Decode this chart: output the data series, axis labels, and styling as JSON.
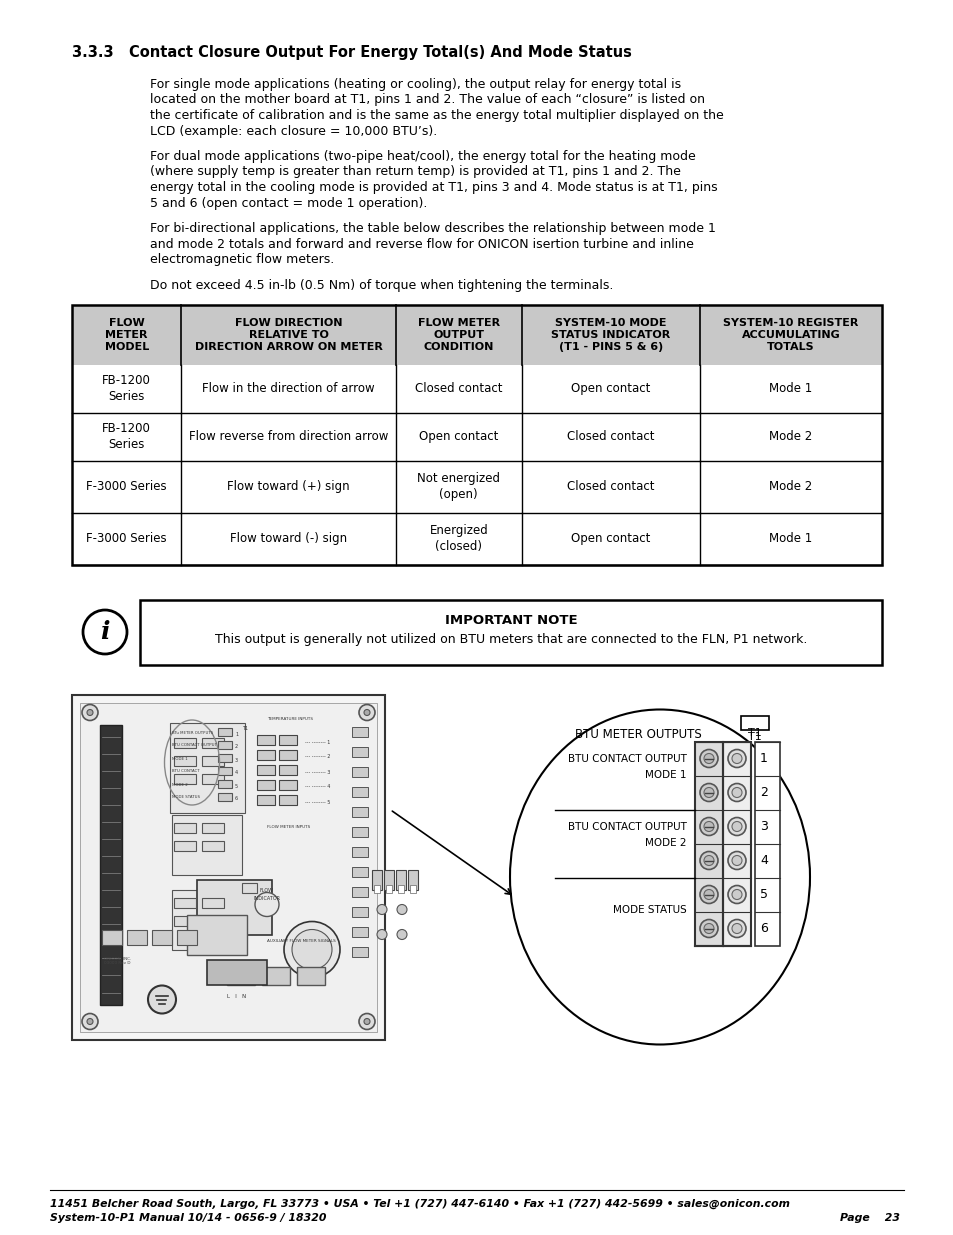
{
  "title_section": "3.3.3   Contact Closure Output For Energy Total(s) And Mode Status",
  "para1_lines": [
    "For single mode applications (heating or cooling), the output relay for energy total is",
    "located on the mother board at T1, pins 1 and 2. The value of each “closure” is listed on",
    "the certificate of calibration and is the same as the energy total multiplier displayed on the",
    "LCD (example: each closure = 10,000 BTU’s)."
  ],
  "para2_lines": [
    "For dual mode applications (two-pipe heat/cool), the energy total for the heating mode",
    "(where supply temp is greater than return temp) is provided at T1, pins 1 and 2. The",
    "energy total in the cooling mode is provided at T1, pins 3 and 4. Mode status is at T1, pins",
    "5 and 6 (open contact = mode 1 operation)."
  ],
  "para3_lines": [
    "For bi-directional applications, the table below describes the relationship between mode 1",
    "and mode 2 totals and forward and reverse flow for ONICON isertion turbine and inline",
    "electromagnetic flow meters."
  ],
  "para4": "Do not exceed 4.5 in-lb (0.5 Nm) of torque when tightening the terminals.",
  "table_headers": [
    "FLOW\nMETER\nMODEL",
    "FLOW DIRECTION\nRELATIVE TO\nDIRECTION ARROW ON METER",
    "FLOW METER\nOUTPUT\nCONDITION",
    "SYSTEM-10 MODE\nSTATUS INDICATOR\n(T1 - PINS 5 & 6)",
    "SYSTEM-10 REGISTER\nACCUMULATING\nTOTALS"
  ],
  "table_rows": [
    [
      "FB-1200\nSeries",
      "Flow in the direction of arrow",
      "Closed contact",
      "Open contact",
      "Mode 1"
    ],
    [
      "FB-1200\nSeries",
      "Flow reverse from direction arrow",
      "Open contact",
      "Closed contact",
      "Mode 2"
    ],
    [
      "F-3000 Series",
      "Flow toward (+) sign",
      "Not energized\n(open)",
      "Closed contact",
      "Mode 2"
    ],
    [
      "F-3000 Series",
      "Flow toward (-) sign",
      "Energized\n(closed)",
      "Open contact",
      "Mode 1"
    ]
  ],
  "note_title": "IMPORTANT NOTE",
  "note_text": "This output is generally not utilized on BTU meters that are connected to the FLN, P1 network.",
  "oval_header": "BTU METER OUTPUTS",
  "oval_t1": "T1",
  "oval_labels": [
    "BTU CONTACT OUTPUT\nMODE 1",
    "BTU CONTACT OUTPUT\nMODE 2",
    "MODE STATUS"
  ],
  "oval_pins": [
    "1",
    "2",
    "3",
    "4",
    "5",
    "6"
  ],
  "footer_line1": "11451 Belcher Road South, Largo, FL 33773 • USA • Tel +1 (727) 447-6140 • Fax +1 (727) 442-5699 • sales@onicon.com",
  "footer_line2": "System-10-P1 Manual 10/14 - 0656-9 / 18320",
  "footer_page": "Page    23",
  "bg_color": "#ffffff",
  "header_bg": "#c8c8c8",
  "text_color": "#000000"
}
